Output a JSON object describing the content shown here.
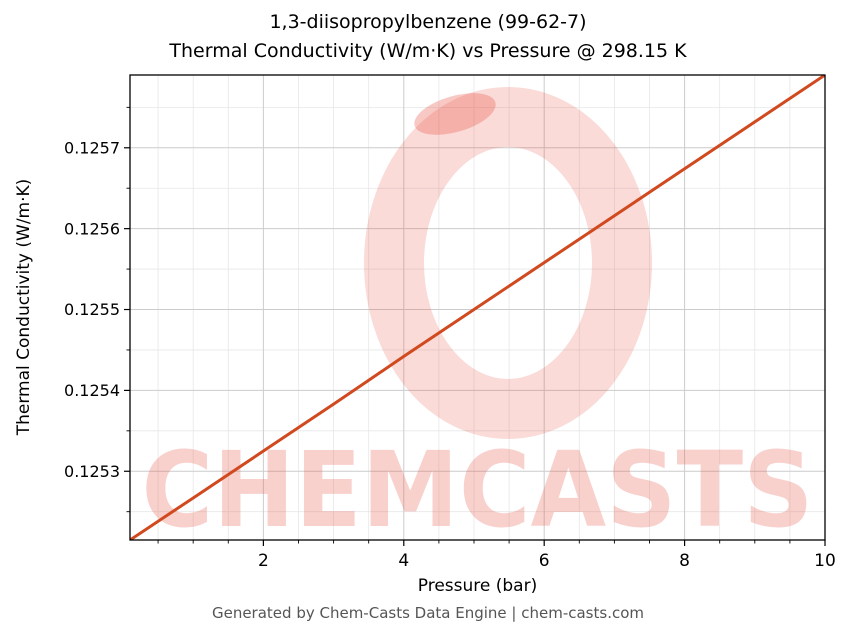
{
  "footer": {
    "text": "Generated by Chem-Casts Data Engine | chem-casts.com"
  },
  "watermark": {
    "text": "CHEMCASTS",
    "color": "#e74c3c",
    "text_opacity": 0.25,
    "logo_opacity": 0.2
  },
  "chart_data": {
    "type": "line",
    "title": "1,3-diisopropylbenzene (99-62-7)",
    "subtitle": "Thermal Conductivity (W/m·K) vs Pressure @ 298.15 K",
    "xlabel": "Pressure (bar)",
    "ylabel": "Thermal Conductivity (W/m·K)",
    "x": [
      0.1,
      1,
      2,
      3,
      4,
      5,
      6,
      7,
      8,
      9,
      10
    ],
    "y": [
      0.125215,
      0.125267,
      0.125325,
      0.125383,
      0.125442,
      0.1255,
      0.125558,
      0.125616,
      0.125674,
      0.125732,
      0.12579
    ],
    "xlim": [
      0.1,
      10
    ],
    "ylim": [
      0.125215,
      0.12579
    ],
    "x_major_ticks": [
      2,
      4,
      6,
      8,
      10
    ],
    "x_minor_step": 0.5,
    "y_major_ticks": [
      0.1253,
      0.1254,
      0.1255,
      0.1256,
      0.1257
    ],
    "y_minor_step": 5e-05,
    "y_tick_decimals": 4,
    "line_color": "#d1491f",
    "grid": true,
    "legend_position": "none"
  }
}
